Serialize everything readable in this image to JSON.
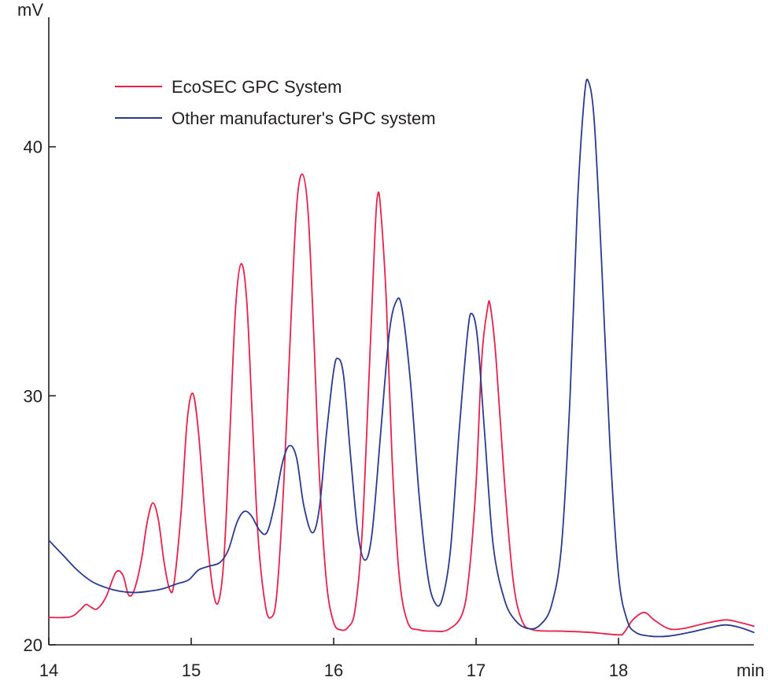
{
  "chart_data": {
    "type": "line",
    "title": "",
    "xlabel": "min",
    "ylabel": "mV",
    "xlim": [
      14,
      18.95
    ],
    "ylim": [
      20,
      45.2
    ],
    "x_ticks": [
      14,
      15,
      16,
      17,
      18
    ],
    "y_ticks": [
      20,
      30,
      40
    ],
    "grid": false,
    "legend_position": "top-left",
    "series": [
      {
        "name": "EcoSEC GPC System",
        "color": "#e8204a",
        "points": [
          [
            14.0,
            21.1
          ],
          [
            14.15,
            21.12
          ],
          [
            14.22,
            21.4
          ],
          [
            14.26,
            21.62
          ],
          [
            14.3,
            21.5
          ],
          [
            14.34,
            21.45
          ],
          [
            14.4,
            21.9
          ],
          [
            14.47,
            22.9
          ],
          [
            14.52,
            22.8
          ],
          [
            14.56,
            22.0
          ],
          [
            14.6,
            22.2
          ],
          [
            14.65,
            23.4
          ],
          [
            14.69,
            24.9
          ],
          [
            14.73,
            25.7
          ],
          [
            14.77,
            25.0
          ],
          [
            14.81,
            23.3
          ],
          [
            14.85,
            22.2
          ],
          [
            14.88,
            22.5
          ],
          [
            14.93,
            25.4
          ],
          [
            14.97,
            28.9
          ],
          [
            15.01,
            30.1
          ],
          [
            15.05,
            28.6
          ],
          [
            15.1,
            25.0
          ],
          [
            15.15,
            22.3
          ],
          [
            15.19,
            21.7
          ],
          [
            15.23,
            23.5
          ],
          [
            15.27,
            28.3
          ],
          [
            15.31,
            33.4
          ],
          [
            15.35,
            35.3
          ],
          [
            15.39,
            33.8
          ],
          [
            15.43,
            29.0
          ],
          [
            15.47,
            24.3
          ],
          [
            15.52,
            21.6
          ],
          [
            15.56,
            21.1
          ],
          [
            15.6,
            22.0
          ],
          [
            15.65,
            26.5
          ],
          [
            15.7,
            33.0
          ],
          [
            15.74,
            37.6
          ],
          [
            15.78,
            38.9
          ],
          [
            15.82,
            37.4
          ],
          [
            15.86,
            32.5
          ],
          [
            15.9,
            26.8
          ],
          [
            15.95,
            22.5
          ],
          [
            16.0,
            20.9
          ],
          [
            16.05,
            20.6
          ],
          [
            16.1,
            20.7
          ],
          [
            16.15,
            21.4
          ],
          [
            16.2,
            24.5
          ],
          [
            16.25,
            31.0
          ],
          [
            16.29,
            36.5
          ],
          [
            16.31,
            38.1
          ],
          [
            16.33,
            37.5
          ],
          [
            16.37,
            33.8
          ],
          [
            16.41,
            27.5
          ],
          [
            16.46,
            22.8
          ],
          [
            16.52,
            20.9
          ],
          [
            16.6,
            20.6
          ],
          [
            16.7,
            20.55
          ],
          [
            16.8,
            20.6
          ],
          [
            16.9,
            21.2
          ],
          [
            16.95,
            22.8
          ],
          [
            17.0,
            26.5
          ],
          [
            17.04,
            31.5
          ],
          [
            17.08,
            33.5
          ],
          [
            17.1,
            33.6
          ],
          [
            17.14,
            31.5
          ],
          [
            17.2,
            26.5
          ],
          [
            17.26,
            22.6
          ],
          [
            17.32,
            21.0
          ],
          [
            17.4,
            20.6
          ],
          [
            17.6,
            20.55
          ],
          [
            17.8,
            20.5
          ],
          [
            18.0,
            20.4
          ],
          [
            18.04,
            20.5
          ],
          [
            18.1,
            21.0
          ],
          [
            18.18,
            21.3
          ],
          [
            18.25,
            21.0
          ],
          [
            18.35,
            20.65
          ],
          [
            18.45,
            20.65
          ],
          [
            18.6,
            20.85
          ],
          [
            18.75,
            21.0
          ],
          [
            18.85,
            20.9
          ],
          [
            18.95,
            20.75
          ]
        ]
      },
      {
        "name": "Other manufacturer's GPC system",
        "color": "#2b3990",
        "points": [
          [
            14.0,
            24.2
          ],
          [
            14.1,
            23.6
          ],
          [
            14.2,
            23.0
          ],
          [
            14.3,
            22.55
          ],
          [
            14.4,
            22.3
          ],
          [
            14.5,
            22.15
          ],
          [
            14.6,
            22.1
          ],
          [
            14.7,
            22.15
          ],
          [
            14.8,
            22.25
          ],
          [
            14.9,
            22.45
          ],
          [
            14.98,
            22.6
          ],
          [
            15.05,
            23.0
          ],
          [
            15.12,
            23.15
          ],
          [
            15.2,
            23.3
          ],
          [
            15.26,
            23.8
          ],
          [
            15.32,
            24.9
          ],
          [
            15.37,
            25.35
          ],
          [
            15.42,
            25.2
          ],
          [
            15.48,
            24.6
          ],
          [
            15.53,
            24.5
          ],
          [
            15.58,
            25.5
          ],
          [
            15.64,
            27.3
          ],
          [
            15.69,
            28.0
          ],
          [
            15.74,
            27.5
          ],
          [
            15.79,
            25.6
          ],
          [
            15.85,
            24.5
          ],
          [
            15.9,
            25.5
          ],
          [
            15.95,
            28.5
          ],
          [
            16.0,
            31.0
          ],
          [
            16.03,
            31.5
          ],
          [
            16.07,
            30.8
          ],
          [
            16.12,
            27.5
          ],
          [
            16.17,
            24.5
          ],
          [
            16.22,
            23.4
          ],
          [
            16.27,
            24.5
          ],
          [
            16.33,
            28.5
          ],
          [
            16.39,
            32.5
          ],
          [
            16.44,
            33.8
          ],
          [
            16.48,
            33.5
          ],
          [
            16.54,
            30.5
          ],
          [
            16.6,
            26.0
          ],
          [
            16.66,
            22.8
          ],
          [
            16.71,
            21.7
          ],
          [
            16.76,
            21.8
          ],
          [
            16.82,
            23.8
          ],
          [
            16.88,
            28.5
          ],
          [
            16.94,
            32.5
          ],
          [
            16.97,
            33.3
          ],
          [
            17.01,
            32.3
          ],
          [
            17.06,
            28.5
          ],
          [
            17.12,
            24.0
          ],
          [
            17.2,
            21.8
          ],
          [
            17.28,
            20.95
          ],
          [
            17.37,
            20.65
          ],
          [
            17.45,
            20.8
          ],
          [
            17.53,
            21.6
          ],
          [
            17.6,
            24.0
          ],
          [
            17.66,
            30.0
          ],
          [
            17.71,
            37.5
          ],
          [
            17.76,
            42.0
          ],
          [
            17.79,
            42.6
          ],
          [
            17.83,
            41.0
          ],
          [
            17.88,
            35.5
          ],
          [
            17.94,
            28.0
          ],
          [
            18.0,
            22.8
          ],
          [
            18.06,
            21.0
          ],
          [
            18.12,
            20.5
          ],
          [
            18.22,
            20.35
          ],
          [
            18.35,
            20.35
          ],
          [
            18.5,
            20.5
          ],
          [
            18.65,
            20.7
          ],
          [
            18.75,
            20.8
          ],
          [
            18.85,
            20.7
          ],
          [
            18.95,
            20.5
          ]
        ]
      }
    ]
  }
}
